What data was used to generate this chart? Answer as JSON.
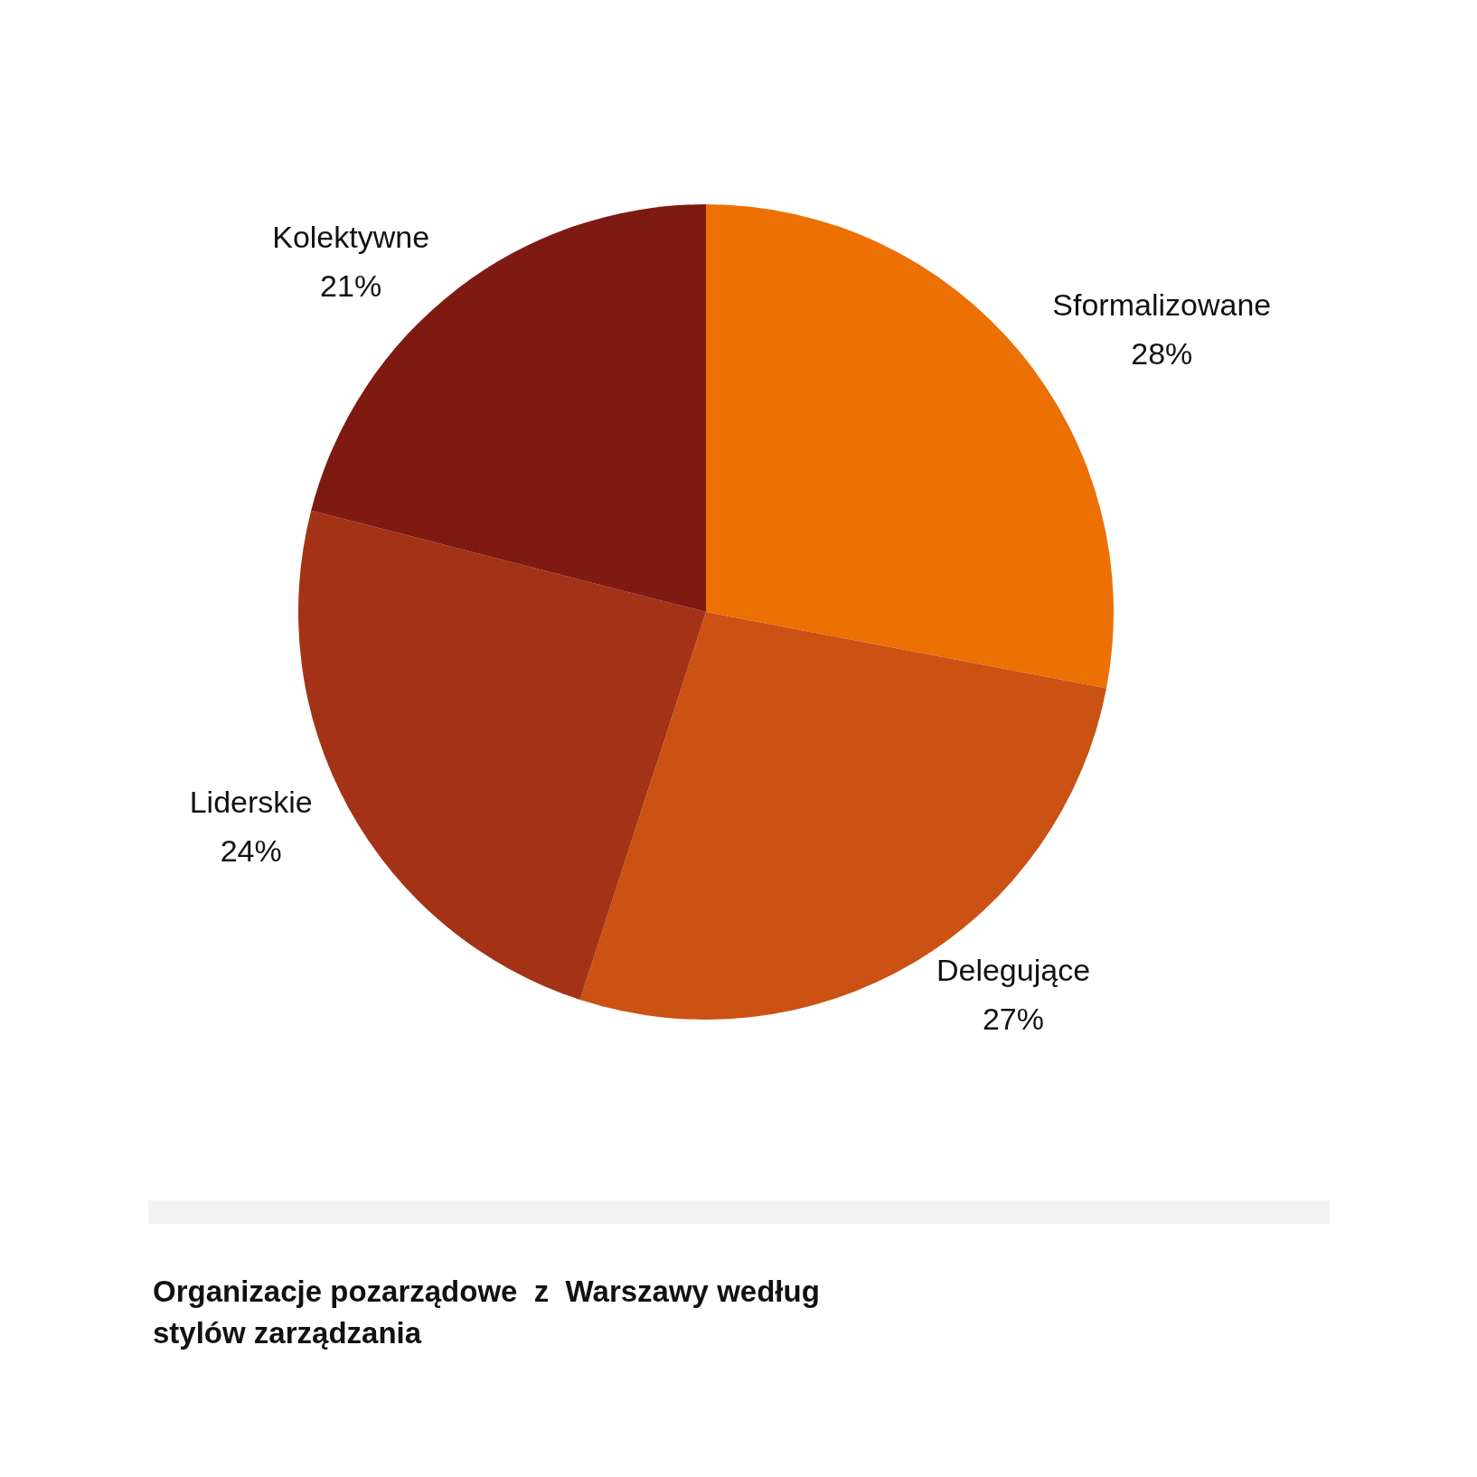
{
  "chart_data": {
    "type": "pie",
    "title": "Organizacje pozarządowe  z  Warszawy według stylów zarządzania",
    "categories": [
      "Sformalizowane",
      "Delegujące",
      "Liderskie",
      "Kolektywne"
    ],
    "values": [
      28,
      27,
      24,
      21
    ],
    "colors": [
      "#ed7004",
      "#cb5213",
      "#a33216",
      "#7e1a12"
    ],
    "value_labels": [
      "28%",
      "27%",
      "24%",
      "21%"
    ]
  }
}
